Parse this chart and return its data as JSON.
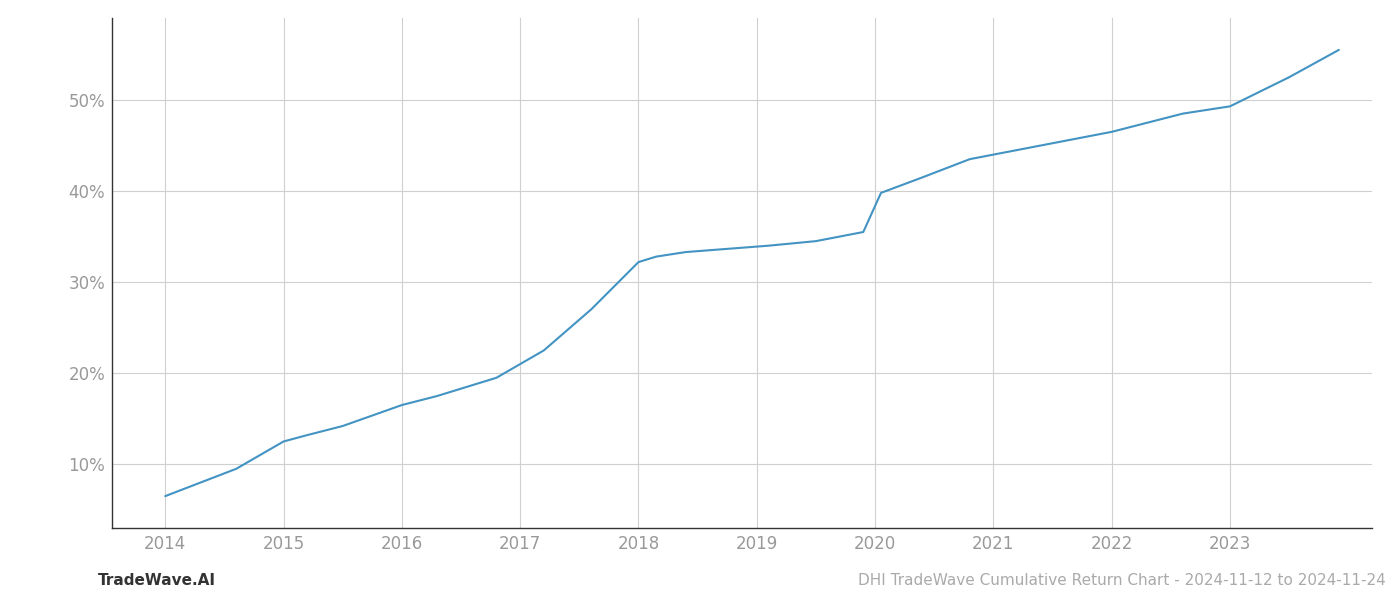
{
  "x_values": [
    2014.0,
    2014.6,
    2015.0,
    2015.2,
    2015.5,
    2016.0,
    2016.3,
    2016.8,
    2017.2,
    2017.6,
    2018.0,
    2018.15,
    2018.4,
    2018.8,
    2019.1,
    2019.5,
    2019.9,
    2020.05,
    2020.4,
    2020.8,
    2021.2,
    2021.6,
    2022.0,
    2022.3,
    2022.6,
    2022.85,
    2023.0,
    2023.5,
    2023.92
  ],
  "y_values": [
    6.5,
    9.5,
    12.5,
    13.2,
    14.2,
    16.5,
    17.5,
    19.5,
    22.5,
    27.0,
    32.2,
    32.8,
    33.3,
    33.7,
    34.0,
    34.5,
    35.5,
    39.8,
    41.5,
    43.5,
    44.5,
    45.5,
    46.5,
    47.5,
    48.5,
    49.0,
    49.3,
    52.5,
    55.5
  ],
  "line_color": "#4393c3",
  "line_width": 1.5,
  "bg_color": "#ffffff",
  "grid_color": "#d0d0d0",
  "tick_label_color": "#999999",
  "ytick_labels": [
    "10%",
    "20%",
    "30%",
    "40%",
    "50%"
  ],
  "ytick_values": [
    10,
    20,
    30,
    40,
    50
  ],
  "xtick_labels": [
    "2014",
    "2015",
    "2016",
    "2017",
    "2018",
    "2019",
    "2020",
    "2021",
    "2022",
    "2023"
  ],
  "xtick_values": [
    2014,
    2015,
    2016,
    2017,
    2018,
    2019,
    2020,
    2021,
    2022,
    2023
  ],
  "xlim": [
    2013.55,
    2024.2
  ],
  "ylim": [
    3,
    59
  ],
  "footer_left": "TradeWave.AI",
  "footer_right": "DHI TradeWave Cumulative Return Chart - 2024-11-12 to 2024-11-24",
  "footer_color": "#aaaaaa",
  "footer_fontsize": 11
}
